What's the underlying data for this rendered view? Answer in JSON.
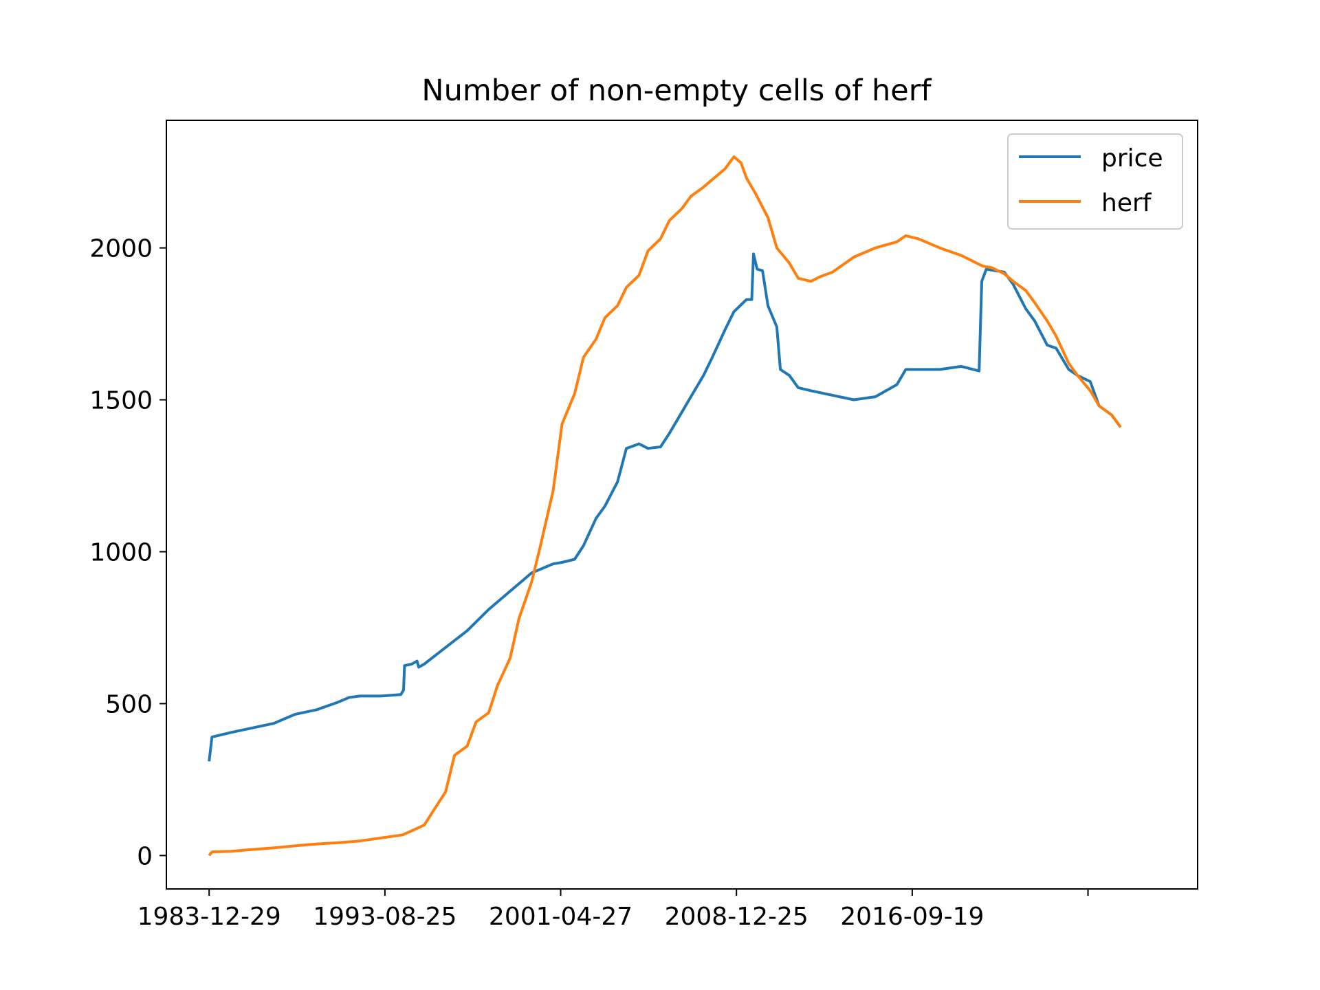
{
  "chart_data": {
    "type": "line",
    "title": "Number of non-empty cells of herf",
    "xlabel": "",
    "ylabel": "",
    "x_ticks": [
      "1983-12-29",
      "1993-08-25",
      "2001-04-27",
      "2008-12-25",
      "2016-09-19",
      ""
    ],
    "y_ticks": [
      0,
      500,
      1000,
      1500,
      2000
    ],
    "ylim": [
      -110,
      2420
    ],
    "xlim": [
      "1982-01-01",
      "2030-01-01"
    ],
    "grid": false,
    "legend": "upper right",
    "series": [
      {
        "name": "price",
        "color": "#1f77b4",
        "points": [
          [
            "1983-12-29",
            310
          ],
          [
            "1984-02-15",
            390
          ],
          [
            "1984-06-01",
            395
          ],
          [
            "1985-01-01",
            405
          ],
          [
            "1986-01-01",
            420
          ],
          [
            "1987-01-01",
            435
          ],
          [
            "1988-01-01",
            465
          ],
          [
            "1989-01-01",
            480
          ],
          [
            "1990-01-01",
            505
          ],
          [
            "1990-07-01",
            520
          ],
          [
            "1991-01-01",
            525
          ],
          [
            "1992-01-01",
            525
          ],
          [
            "1992-12-01",
            530
          ],
          [
            "1993-01-15",
            545
          ],
          [
            "1993-02-01",
            625
          ],
          [
            "1993-06-01",
            630
          ],
          [
            "1993-09-01",
            640
          ],
          [
            "1993-10-01",
            620
          ],
          [
            "1994-01-01",
            630
          ],
          [
            "1995-01-01",
            685
          ],
          [
            "1996-01-01",
            740
          ],
          [
            "1997-01-01",
            810
          ],
          [
            "1998-01-01",
            870
          ],
          [
            "1999-01-01",
            930
          ],
          [
            "2000-01-01",
            960
          ],
          [
            "2000-06-01",
            965
          ],
          [
            "2001-01-01",
            975
          ],
          [
            "2001-06-01",
            1020
          ],
          [
            "2002-01-01",
            1110
          ],
          [
            "2002-06-01",
            1150
          ],
          [
            "2003-01-01",
            1230
          ],
          [
            "2003-06-01",
            1340
          ],
          [
            "2004-01-01",
            1355
          ],
          [
            "2004-06-01",
            1340
          ],
          [
            "2005-01-01",
            1345
          ],
          [
            "2005-06-01",
            1390
          ],
          [
            "2006-01-01",
            1460
          ],
          [
            "2006-06-01",
            1510
          ],
          [
            "2007-01-01",
            1580
          ],
          [
            "2007-06-01",
            1640
          ],
          [
            "2008-01-01",
            1730
          ],
          [
            "2008-06-01",
            1790
          ],
          [
            "2009-01-01",
            1830
          ],
          [
            "2009-04-01",
            1830
          ],
          [
            "2009-05-01",
            1980
          ],
          [
            "2009-07-01",
            1930
          ],
          [
            "2009-10-01",
            1925
          ],
          [
            "2010-01-01",
            1810
          ],
          [
            "2010-06-01",
            1740
          ],
          [
            "2010-08-01",
            1600
          ],
          [
            "2011-01-01",
            1580
          ],
          [
            "2011-06-01",
            1540
          ],
          [
            "2012-01-01",
            1530
          ],
          [
            "2013-01-01",
            1515
          ],
          [
            "2014-01-01",
            1500
          ],
          [
            "2015-01-01",
            1510
          ],
          [
            "2016-01-01",
            1550
          ],
          [
            "2016-06-01",
            1600
          ],
          [
            "2017-01-01",
            1600
          ],
          [
            "2018-01-01",
            1600
          ],
          [
            "2019-01-01",
            1610
          ],
          [
            "2019-11-01",
            1595
          ],
          [
            "2019-12-15",
            1890
          ],
          [
            "2020-03-01",
            1930
          ],
          [
            "2021-01-01",
            1920
          ],
          [
            "2021-06-01",
            1880
          ],
          [
            "2022-01-01",
            1800
          ],
          [
            "2022-06-01",
            1760
          ],
          [
            "2023-01-01",
            1680
          ],
          [
            "2023-06-01",
            1670
          ],
          [
            "2024-01-01",
            1600
          ],
          [
            "2024-06-01",
            1580
          ],
          [
            "2025-01-01",
            1560
          ],
          [
            "2025-06-01",
            1480
          ],
          [
            "2026-01-01",
            1450
          ],
          [
            "2026-06-01",
            1410
          ]
        ]
      },
      {
        "name": "herf",
        "color": "#ff7f0e",
        "points": [
          [
            "1983-12-29",
            0
          ],
          [
            "1984-02-15",
            12
          ],
          [
            "1985-01-01",
            14
          ],
          [
            "1986-01-01",
            20
          ],
          [
            "1987-01-01",
            25
          ],
          [
            "1988-01-01",
            32
          ],
          [
            "1989-01-01",
            38
          ],
          [
            "1990-01-01",
            42
          ],
          [
            "1991-01-01",
            48
          ],
          [
            "1992-01-01",
            58
          ],
          [
            "1993-01-01",
            68
          ],
          [
            "1994-01-01",
            100
          ],
          [
            "1995-01-01",
            210
          ],
          [
            "1995-06-01",
            330
          ],
          [
            "1996-01-01",
            360
          ],
          [
            "1996-06-01",
            440
          ],
          [
            "1997-01-01",
            470
          ],
          [
            "1997-06-01",
            560
          ],
          [
            "1998-01-01",
            650
          ],
          [
            "1998-06-01",
            780
          ],
          [
            "1999-01-01",
            900
          ],
          [
            "1999-06-01",
            1020
          ],
          [
            "2000-01-01",
            1200
          ],
          [
            "2000-06-01",
            1420
          ],
          [
            "2001-01-01",
            1520
          ],
          [
            "2001-06-01",
            1640
          ],
          [
            "2002-01-01",
            1700
          ],
          [
            "2002-06-01",
            1770
          ],
          [
            "2003-01-01",
            1810
          ],
          [
            "2003-06-01",
            1870
          ],
          [
            "2004-01-01",
            1910
          ],
          [
            "2004-06-01",
            1990
          ],
          [
            "2005-01-01",
            2030
          ],
          [
            "2005-06-01",
            2090
          ],
          [
            "2006-01-01",
            2130
          ],
          [
            "2006-06-01",
            2170
          ],
          [
            "2007-01-01",
            2200
          ],
          [
            "2007-06-01",
            2225
          ],
          [
            "2008-01-01",
            2260
          ],
          [
            "2008-06-01",
            2300
          ],
          [
            "2008-10-01",
            2280
          ],
          [
            "2009-01-01",
            2230
          ],
          [
            "2009-06-01",
            2180
          ],
          [
            "2010-01-01",
            2100
          ],
          [
            "2010-06-01",
            2000
          ],
          [
            "2011-01-01",
            1950
          ],
          [
            "2011-06-01",
            1900
          ],
          [
            "2012-01-01",
            1890
          ],
          [
            "2012-06-01",
            1905
          ],
          [
            "2013-01-01",
            1920
          ],
          [
            "2014-01-01",
            1970
          ],
          [
            "2015-01-01",
            2000
          ],
          [
            "2016-01-01",
            2020
          ],
          [
            "2016-06-01",
            2040
          ],
          [
            "2017-01-01",
            2030
          ],
          [
            "2018-01-01",
            2000
          ],
          [
            "2019-01-01",
            1975
          ],
          [
            "2020-01-01",
            1940
          ],
          [
            "2020-06-01",
            1935
          ],
          [
            "2021-01-01",
            1915
          ],
          [
            "2021-06-01",
            1890
          ],
          [
            "2022-01-01",
            1860
          ],
          [
            "2022-06-01",
            1820
          ],
          [
            "2023-01-01",
            1760
          ],
          [
            "2023-06-01",
            1710
          ],
          [
            "2024-01-01",
            1620
          ],
          [
            "2024-06-01",
            1580
          ],
          [
            "2025-01-01",
            1530
          ],
          [
            "2025-06-01",
            1480
          ],
          [
            "2026-01-01",
            1450
          ],
          [
            "2026-06-01",
            1410
          ]
        ]
      }
    ]
  }
}
